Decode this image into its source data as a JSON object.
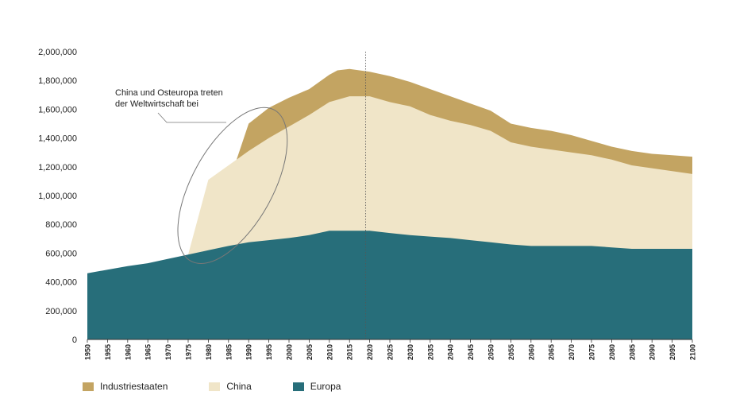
{
  "chart_data": {
    "type": "area",
    "stacked": true,
    "title": "",
    "xlabel": "",
    "ylabel": "",
    "xlim": [
      1950,
      2100
    ],
    "ylim": [
      0,
      2000000
    ],
    "y_ticks": [
      0,
      200000,
      400000,
      600000,
      800000,
      1000000,
      1200000,
      1400000,
      1600000,
      1800000,
      2000000
    ],
    "y_tick_labels": [
      "0",
      "200,000",
      "400,000",
      "600,000",
      "800,000",
      "1,000,000",
      "1,200,000",
      "1,400,000",
      "1,600,000",
      "1,800,000",
      "2,000,000"
    ],
    "x_ticks": [
      1950,
      1955,
      1960,
      1965,
      1970,
      1975,
      1980,
      1985,
      1990,
      1995,
      2000,
      2005,
      2010,
      2015,
      2020,
      2025,
      2030,
      2035,
      2040,
      2045,
      2050,
      2055,
      2060,
      2065,
      2070,
      2075,
      2080,
      2085,
      2090,
      2095,
      2100
    ],
    "x_tick_labels": [
      "1950",
      "1955",
      "1960",
      "1965",
      "1970",
      "1975",
      "1980",
      "1985",
      "1990",
      "1995",
      "2000",
      "2005",
      "2010",
      "2015",
      "2020",
      "2025",
      "2030",
      "2035",
      "2040",
      "2045",
      "2050",
      "2055",
      "2060",
      "2065",
      "2070",
      "2075",
      "2080",
      "2085",
      "2090",
      "2095",
      "2100"
    ],
    "vertical_marker_year": 2019,
    "grid": false,
    "legend_position": "bottom-left",
    "series": [
      {
        "name": "Europa",
        "color": "#276e7a",
        "points": [
          [
            1950,
            460000
          ],
          [
            1955,
            485000
          ],
          [
            1960,
            510000
          ],
          [
            1965,
            530000
          ],
          [
            1970,
            560000
          ],
          [
            1975,
            590000
          ],
          [
            1980,
            620000
          ],
          [
            1985,
            650000
          ],
          [
            1990,
            675000
          ],
          [
            1995,
            690000
          ],
          [
            2000,
            705000
          ],
          [
            2005,
            725000
          ],
          [
            2010,
            755000
          ],
          [
            2015,
            755000
          ],
          [
            2020,
            755000
          ],
          [
            2025,
            740000
          ],
          [
            2030,
            725000
          ],
          [
            2035,
            715000
          ],
          [
            2040,
            705000
          ],
          [
            2045,
            690000
          ],
          [
            2050,
            675000
          ],
          [
            2055,
            660000
          ],
          [
            2060,
            650000
          ],
          [
            2065,
            650000
          ],
          [
            2070,
            650000
          ],
          [
            2075,
            650000
          ],
          [
            2080,
            640000
          ],
          [
            2085,
            630000
          ],
          [
            2090,
            630000
          ],
          [
            2095,
            630000
          ],
          [
            2100,
            630000
          ]
        ]
      },
      {
        "name": "China",
        "color": "#f0e5c8",
        "points": [
          [
            1975,
            590000
          ],
          [
            1980,
            1110000
          ],
          [
            1985,
            1210000
          ],
          [
            1987,
            1250000
          ],
          [
            1990,
            1310000
          ],
          [
            1995,
            1400000
          ],
          [
            2000,
            1480000
          ],
          [
            2005,
            1560000
          ],
          [
            2010,
            1650000
          ],
          [
            2015,
            1690000
          ],
          [
            2020,
            1690000
          ],
          [
            2025,
            1650000
          ],
          [
            2030,
            1620000
          ],
          [
            2035,
            1560000
          ],
          [
            2040,
            1520000
          ],
          [
            2045,
            1490000
          ],
          [
            2050,
            1450000
          ],
          [
            2055,
            1370000
          ],
          [
            2060,
            1340000
          ],
          [
            2065,
            1320000
          ],
          [
            2070,
            1300000
          ],
          [
            2075,
            1280000
          ],
          [
            2080,
            1250000
          ],
          [
            2085,
            1210000
          ],
          [
            2090,
            1190000
          ],
          [
            2095,
            1170000
          ],
          [
            2100,
            1150000
          ]
        ]
      },
      {
        "name": "Industriestaaten",
        "color": "#c3a462",
        "points": [
          [
            1987,
            1250000
          ],
          [
            1990,
            1500000
          ],
          [
            1995,
            1610000
          ],
          [
            2000,
            1680000
          ],
          [
            2005,
            1740000
          ],
          [
            2010,
            1840000
          ],
          [
            2012,
            1870000
          ],
          [
            2015,
            1880000
          ],
          [
            2020,
            1860000
          ],
          [
            2025,
            1830000
          ],
          [
            2030,
            1790000
          ],
          [
            2035,
            1740000
          ],
          [
            2040,
            1690000
          ],
          [
            2045,
            1640000
          ],
          [
            2050,
            1590000
          ],
          [
            2055,
            1500000
          ],
          [
            2060,
            1470000
          ],
          [
            2065,
            1450000
          ],
          [
            2070,
            1420000
          ],
          [
            2075,
            1380000
          ],
          [
            2080,
            1340000
          ],
          [
            2085,
            1310000
          ],
          [
            2090,
            1290000
          ],
          [
            2095,
            1280000
          ],
          [
            2100,
            1270000
          ]
        ]
      }
    ],
    "annotation": {
      "text_lines": [
        "China und Osteuropa treten",
        "der Weltwirtschaft bei"
      ],
      "circle_center_x": 1986,
      "circle_center_y": 1070000,
      "circle_radius_x_years": 10,
      "circle_radius_y_value": 600000,
      "circle_tilt_deg": 29
    }
  },
  "legend": {
    "items": [
      {
        "name": "Industriestaaten",
        "color": "#c3a462"
      },
      {
        "name": "China",
        "color": "#f0e5c8"
      },
      {
        "name": "Europa",
        "color": "#276e7a"
      }
    ]
  }
}
